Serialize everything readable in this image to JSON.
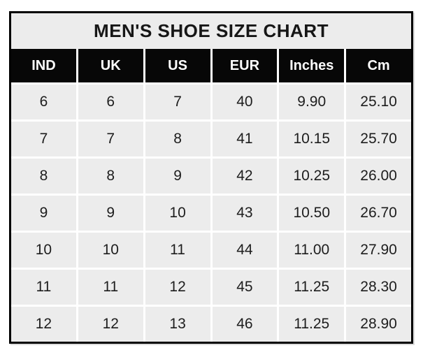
{
  "title": "MEN'S SHOE SIZE CHART",
  "table": {
    "columns": [
      "IND",
      "UK",
      "US",
      "EUR",
      "Inches",
      "Cm"
    ],
    "rows": [
      [
        "6",
        "6",
        "7",
        "40",
        "9.90",
        "25.10"
      ],
      [
        "7",
        "7",
        "8",
        "41",
        "10.15",
        "25.70"
      ],
      [
        "8",
        "8",
        "9",
        "42",
        "10.25",
        "26.00"
      ],
      [
        "9",
        "9",
        "10",
        "43",
        "10.50",
        "26.70"
      ],
      [
        "10",
        "10",
        "11",
        "44",
        "11.00",
        "27.90"
      ],
      [
        "11",
        "11",
        "12",
        "45",
        "11.25",
        "28.30"
      ],
      [
        "12",
        "12",
        "13",
        "46",
        "11.25",
        "28.90"
      ]
    ]
  },
  "colors": {
    "border": "#000000",
    "title_bg": "#ececec",
    "header_bg": "#070707",
    "header_text": "#ffffff",
    "cell_bg": "#ececec",
    "cell_text": "#1d1d1d",
    "gridline": "#ffffff"
  },
  "chart_data": {
    "type": "table",
    "title": "MEN'S SHOE SIZE CHART",
    "columns": [
      "IND",
      "UK",
      "US",
      "EUR",
      "Inches",
      "Cm"
    ],
    "rows": [
      [
        6,
        6,
        7,
        40,
        9.9,
        25.1
      ],
      [
        7,
        7,
        8,
        41,
        10.15,
        25.7
      ],
      [
        8,
        8,
        9,
        42,
        10.25,
        26.0
      ],
      [
        9,
        9,
        10,
        43,
        10.5,
        26.7
      ],
      [
        10,
        10,
        11,
        44,
        11.0,
        27.9
      ],
      [
        11,
        11,
        12,
        45,
        11.25,
        28.3
      ],
      [
        12,
        12,
        13,
        46,
        11.25,
        28.9
      ]
    ]
  }
}
